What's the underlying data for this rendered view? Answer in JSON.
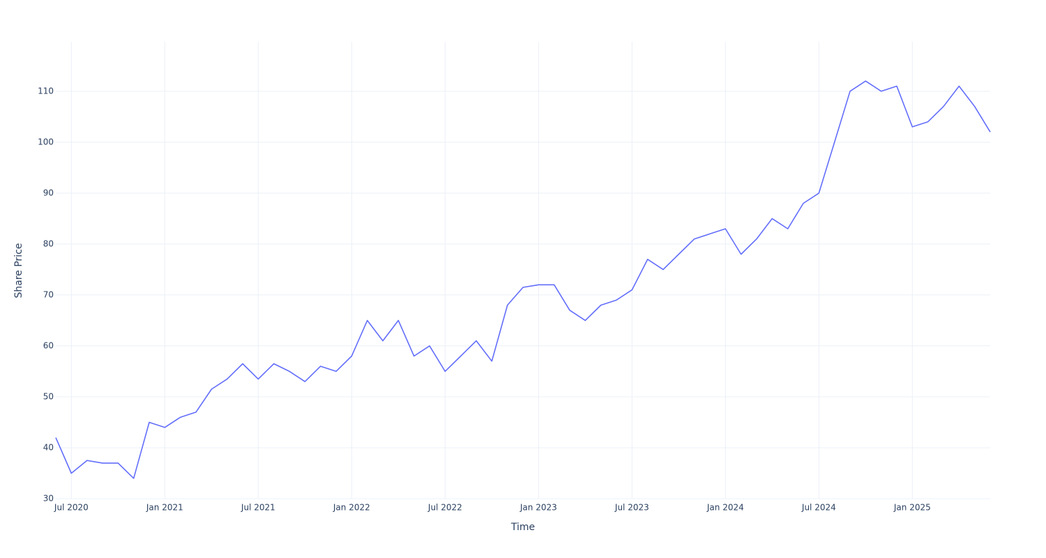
{
  "chart_data": {
    "type": "line",
    "x_title": "Time",
    "y_title": "Share Price",
    "x": [
      "2020-06",
      "2020-07",
      "2020-08",
      "2020-09",
      "2020-10",
      "2020-11",
      "2020-12",
      "2021-01",
      "2021-02",
      "2021-03",
      "2021-04",
      "2021-05",
      "2021-06",
      "2021-07",
      "2021-08",
      "2021-09",
      "2021-10",
      "2021-11",
      "2021-12",
      "2022-01",
      "2022-02",
      "2022-03",
      "2022-04",
      "2022-05",
      "2022-06",
      "2022-07",
      "2022-08",
      "2022-09",
      "2022-10",
      "2022-11",
      "2022-12",
      "2023-01",
      "2023-02",
      "2023-03",
      "2023-04",
      "2023-05",
      "2023-06",
      "2023-07",
      "2023-08",
      "2023-09",
      "2023-10",
      "2023-11",
      "2023-12",
      "2024-01",
      "2024-02",
      "2024-03",
      "2024-04",
      "2024-05",
      "2024-06",
      "2024-07",
      "2024-08",
      "2024-09",
      "2024-10",
      "2024-11",
      "2024-12",
      "2025-01",
      "2025-02",
      "2025-03",
      "2025-04",
      "2025-05",
      "2025-06"
    ],
    "series": [
      {
        "name": "Share Price",
        "color": "#636efa",
        "values": [
          42,
          35,
          37.5,
          37,
          37,
          34,
          45,
          44,
          46,
          47,
          51.5,
          53.5,
          56.5,
          53.5,
          56.5,
          55,
          53,
          56,
          55,
          58,
          65,
          61,
          65,
          58,
          60,
          55,
          58,
          61,
          57,
          68,
          71.5,
          72,
          72,
          67,
          65,
          68,
          69,
          71,
          77,
          75,
          78,
          81,
          82,
          83,
          78,
          81,
          85,
          83,
          88,
          90,
          100,
          110,
          112,
          110,
          111,
          103,
          104,
          107,
          111,
          107,
          102
        ]
      }
    ],
    "xlim": [
      "2020-06",
      "2025-06"
    ],
    "xticks": [
      {
        "value": "2020-07",
        "label": "Jul 2020"
      },
      {
        "value": "2021-01",
        "label": "Jan 2021"
      },
      {
        "value": "2021-07",
        "label": "Jul 2021"
      },
      {
        "value": "2022-01",
        "label": "Jan 2022"
      },
      {
        "value": "2022-07",
        "label": "Jul 2022"
      },
      {
        "value": "2023-01",
        "label": "Jan 2023"
      },
      {
        "value": "2023-07",
        "label": "Jul 2023"
      },
      {
        "value": "2024-01",
        "label": "Jan 2024"
      },
      {
        "value": "2024-07",
        "label": "Jul 2024"
      },
      {
        "value": "2025-01",
        "label": "Jan 2025"
      }
    ],
    "ylim": [
      30,
      119.7
    ],
    "yticks": [
      30,
      40,
      50,
      60,
      70,
      80,
      90,
      100,
      110
    ],
    "grid": true
  }
}
